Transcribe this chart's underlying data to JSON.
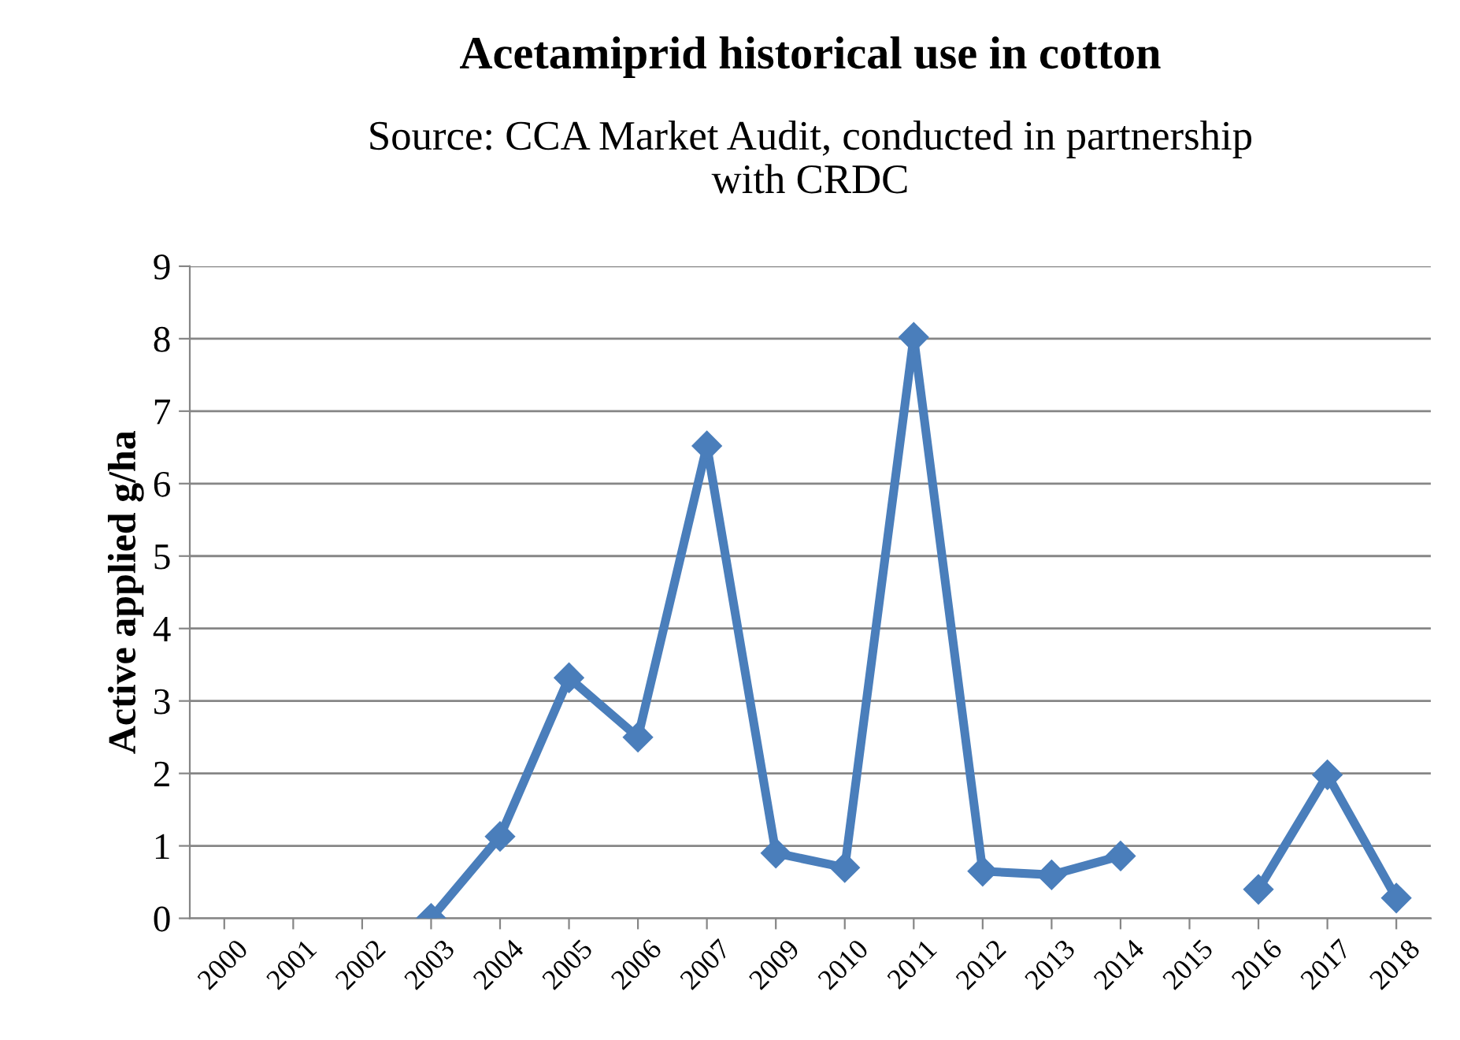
{
  "chart_data": {
    "type": "line",
    "title": "Acetamiprid historical use in cotton",
    "subtitle": "Source: CCA Market Audit, conducted in partnership\nwith CRDC",
    "ylabel": "Active applied g/ha",
    "categories": [
      "2000",
      "2001",
      "2002",
      "2003",
      "2004",
      "2005",
      "2006",
      "2007",
      "2009",
      "2010",
      "2011",
      "2012",
      "2013",
      "2014",
      "2015",
      "2016",
      "2017",
      "2018"
    ],
    "series": [
      {
        "color": "#4a7ebb",
        "values": [
          null,
          null,
          null,
          0,
          1.13,
          3.32,
          2.5,
          6.52,
          0.9,
          0.7,
          8.02,
          0.65,
          0.6,
          0.86,
          null,
          0.4,
          1.98,
          0.28
        ]
      }
    ],
    "ylim": [
      0,
      9
    ],
    "yticks": [
      0,
      1,
      2,
      3,
      4,
      5,
      6,
      7,
      8,
      9
    ],
    "grid": "y",
    "marker": "diamond",
    "line_style": "solid",
    "legend": false
  }
}
